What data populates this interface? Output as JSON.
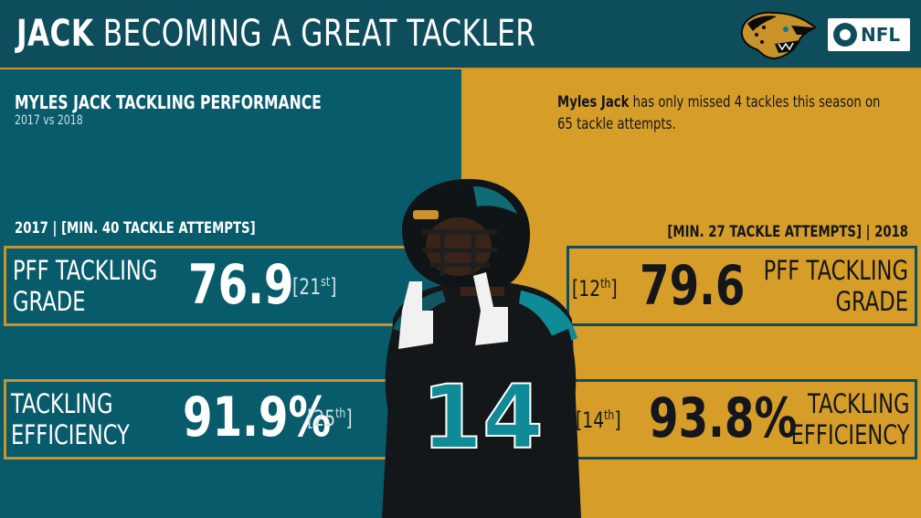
{
  "header": {
    "title_bold": "JACK",
    "title_rest": " BECOMING A GREAT TACKLER",
    "network_badge": "NFL"
  },
  "left": {
    "title": "MYLES JACK TACKLING PERFORMANCE",
    "subtitle": "2017 vs 2018",
    "section_label": "2017 | [MIN. 40 TACKLE ATTEMPTS]",
    "grade_label_1": "PFF TACKLING",
    "grade_label_2": "GRADE",
    "grade_value": "76.9",
    "grade_rank_open": "[21",
    "grade_rank_sup": "st",
    "grade_rank_close": "]",
    "eff_label_1": "TACKLING",
    "eff_label_2": "EFFICIENCY",
    "eff_value": "91.9%",
    "eff_rank_open": "[25",
    "eff_rank_sup": "th",
    "eff_rank_close": "]"
  },
  "right": {
    "note_bold": "Myles Jack",
    "note_rest": " has only missed 4 tackles this season on 65 tackle attempts.",
    "section_label": "[MIN. 27 TACKLE ATTEMPTS] | 2018",
    "grade_label_1": "PFF TACKLING",
    "grade_label_2": "GRADE",
    "grade_value": "79.6",
    "grade_rank_open": "[12",
    "grade_rank_sup": "th",
    "grade_rank_close": "]",
    "eff_label_1": "TACKLING",
    "eff_label_2": "EFFICIENCY",
    "eff_value": "93.8%",
    "eff_rank_open": "[14",
    "eff_rank_sup": "th",
    "eff_rank_close": "]"
  },
  "player": {
    "jersey_number": "14"
  },
  "colors": {
    "teal": "#085b6b",
    "dark_teal": "#0e4d5c",
    "gold": "#d69e29"
  }
}
